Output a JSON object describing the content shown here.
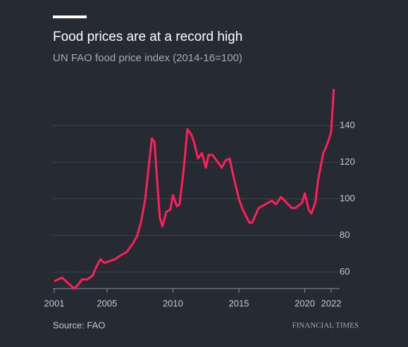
{
  "chart_data": {
    "type": "line",
    "title": "Food prices are at a record high",
    "subtitle": "UN FAO food price index (2014-16=100)",
    "source": "Source: FAO",
    "brand": "FINANCIAL TIMES",
    "x": [
      2001.0,
      2001.3,
      2001.6,
      2001.9,
      2002.2,
      2002.5,
      2002.8,
      2003.1,
      2003.5,
      2003.9,
      2004.2,
      2004.5,
      2004.8,
      2005.2,
      2005.6,
      2006.0,
      2006.5,
      2007.0,
      2007.3,
      2007.6,
      2007.9,
      2008.2,
      2008.4,
      2008.6,
      2008.8,
      2009.0,
      2009.2,
      2009.5,
      2009.8,
      2010.0,
      2010.3,
      2010.5,
      2010.8,
      2011.1,
      2011.4,
      2011.6,
      2011.9,
      2012.2,
      2012.5,
      2012.7,
      2013.0,
      2013.4,
      2013.7,
      2014.0,
      2014.3,
      2014.6,
      2015.0,
      2015.3,
      2015.8,
      2016.0,
      2016.5,
      2017.0,
      2017.5,
      2017.8,
      2018.2,
      2018.6,
      2019.0,
      2019.3,
      2019.8,
      2020.0,
      2020.3,
      2020.5,
      2020.8,
      2021.0,
      2021.4,
      2021.6,
      2021.9,
      2022.0,
      2022.2
    ],
    "series": [
      {
        "name": "FAO food price index",
        "color": "#ff1f5a",
        "values": [
          55,
          56,
          57,
          55,
          53,
          51,
          53,
          56,
          56,
          58,
          63,
          67,
          65,
          66,
          67,
          69,
          71,
          76,
          80,
          88,
          100,
          120,
          133,
          131,
          110,
          90,
          85,
          93,
          94,
          102,
          96,
          97,
          115,
          138,
          135,
          131,
          122,
          125,
          117,
          124,
          124,
          120,
          117,
          121,
          122,
          112,
          100,
          94,
          87,
          87,
          95,
          97,
          99,
          97,
          101,
          98,
          95,
          95,
          98,
          103,
          94,
          92,
          98,
          110,
          125,
          128,
          134,
          137,
          160
        ]
      }
    ],
    "xlim": [
      2001,
      2022
    ],
    "xticks": [
      2001,
      2005,
      2010,
      2015,
      2020,
      2022
    ],
    "ylim": [
      51,
      164
    ],
    "yticks": [
      60,
      80,
      100,
      120,
      140
    ],
    "grid": true
  }
}
